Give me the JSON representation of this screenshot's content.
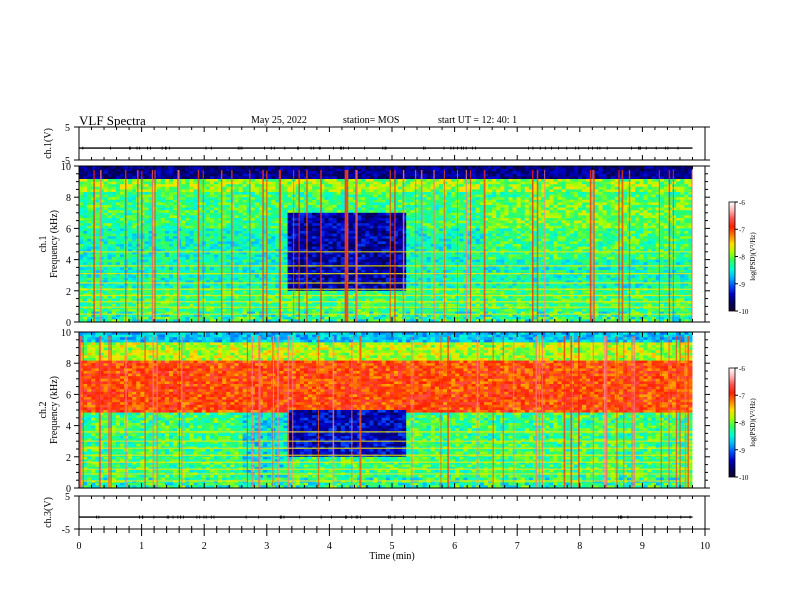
{
  "header": {
    "title": "VLF Spectra",
    "date": "May 25, 2022",
    "station": "station= MOS",
    "start": "start  UT =   12: 40: 1"
  },
  "chart_data": [
    {
      "type": "line",
      "panel": "ch1-waveform",
      "ylabel": "ch.1(V)",
      "ylim": [
        -5,
        5
      ],
      "ytick_labels": [
        "5",
        "-5"
      ],
      "x": [
        0,
        1,
        2,
        3,
        4,
        5,
        6,
        7,
        8,
        9,
        9.8
      ],
      "values": [
        -1.4,
        -1.4,
        -1.4,
        -1.4,
        -1.4,
        -1.4,
        -1.4,
        -1.4,
        -1.4,
        -1.4,
        -1.4
      ]
    },
    {
      "type": "heatmap",
      "panel": "ch1-spectrogram",
      "ylabel": "ch.1 Frequency (kHz)",
      "ylim": [
        0,
        10
      ],
      "ytick_labels": [
        "0",
        "2",
        "4",
        "6",
        "8",
        "10"
      ],
      "colorbar_label": "log(PSD)(V²/Hz)",
      "colorbar_range": [
        -10,
        -6
      ],
      "colorbar_ticks": [
        "-6",
        "-7",
        "-8",
        "-9",
        "-10"
      ]
    },
    {
      "type": "heatmap",
      "panel": "ch2-spectrogram",
      "ylabel": "ch.2 Frequency (kHz)",
      "ylim": [
        0,
        10
      ],
      "ytick_labels": [
        "0",
        "2",
        "4",
        "6",
        "8",
        "10"
      ],
      "colorbar_label": "log(PSD)(V²/Hz)",
      "colorbar_range": [
        -10,
        -6
      ],
      "colorbar_ticks": [
        "-6",
        "-7",
        "-8",
        "-9",
        "-10"
      ]
    },
    {
      "type": "line",
      "panel": "ch3-waveform",
      "ylabel": "ch.3(V)",
      "ylim": [
        -5,
        5
      ],
      "ytick_labels": [
        "5",
        "-5"
      ],
      "x": [
        0,
        1,
        2,
        3,
        4,
        5,
        6,
        7,
        8,
        9,
        9.8
      ],
      "values": [
        -1.4,
        -1.4,
        -1.4,
        -1.4,
        -1.4,
        -1.4,
        -1.4,
        -1.4,
        -1.4,
        -1.4,
        -1.4
      ]
    }
  ],
  "xaxis": {
    "label": "Time (min)",
    "xlim": [
      0,
      10
    ],
    "data_end": 9.8,
    "tick_labels": [
      "0",
      "1",
      "2",
      "3",
      "4",
      "5",
      "6",
      "7",
      "8",
      "9",
      "10"
    ]
  },
  "colormap": [
    "#1a0030",
    "#000060",
    "#0000c8",
    "#0050ff",
    "#00b8ff",
    "#00ffd0",
    "#30ff60",
    "#a8ff00",
    "#ffe000",
    "#ff8000",
    "#ff2000",
    "#ff5050",
    "#ffb8b8",
    "#ffffff"
  ]
}
